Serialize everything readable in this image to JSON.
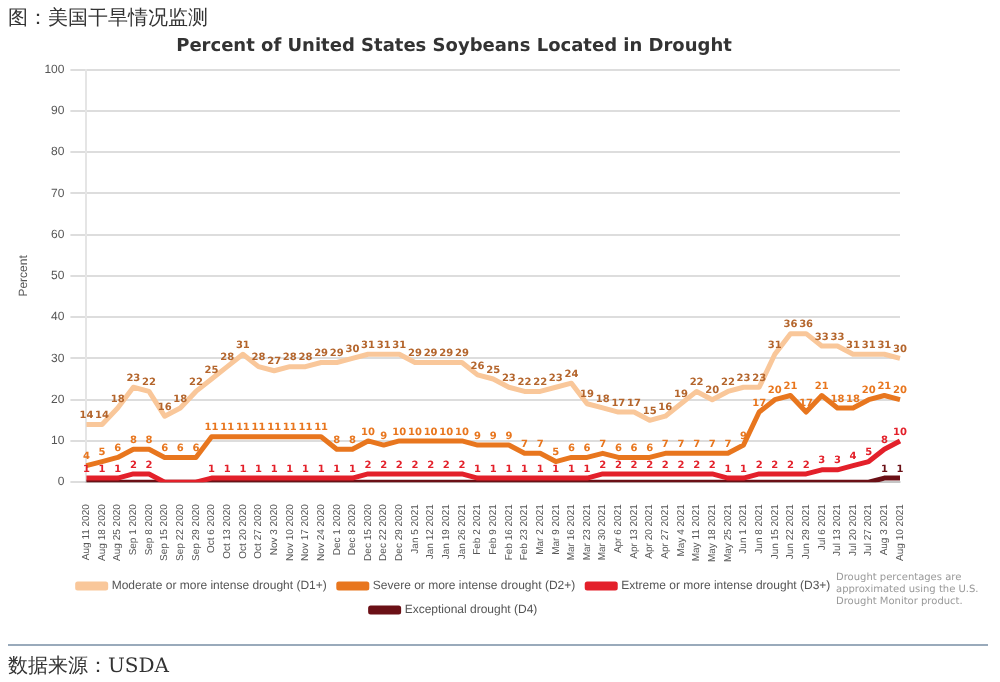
{
  "chart_data": {
    "type": "line",
    "subtitle": "图：美国干旱情况监测",
    "title": "Percent of United States Soybeans Located in Drought",
    "ylabel": "Percent",
    "categories": [
      "Aug 11 2020",
      "Aug 18 2020",
      "Aug 25 2020",
      "Sep 1 2020",
      "Sep 8 2020",
      "Sep 15 2020",
      "Sep 22 2020",
      "Sep 29 2020",
      "Oct 6 2020",
      "Oct 13 2020",
      "Oct 20 2020",
      "Oct 27 2020",
      "Nov 3 2020",
      "Nov 10 2020",
      "Nov 17 2020",
      "Nov 24 2020",
      "Dec 1 2020",
      "Dec 8 2020",
      "Dec 15 2020",
      "Dec 22 2020",
      "Dec 29 2020",
      "Jan 5 2021",
      "Jan 12 2021",
      "Jan 19 2021",
      "Jan 26 2021",
      "Feb 2 2021",
      "Feb 9 2021",
      "Feb 16 2021",
      "Feb 23 2021",
      "Mar 2 2021",
      "Mar 9 2021",
      "Mar 16 2021",
      "Mar 23 2021",
      "Mar 30 2021",
      "Apr 6 2021",
      "Apr 13 2021",
      "Apr 20 2021",
      "Apr 27 2021",
      "May 4 2021",
      "May 11 2021",
      "May 18 2021",
      "May 25 2021",
      "Jun 1 2021",
      "Jun 8 2021",
      "Jun 15 2021",
      "Jun 22 2021",
      "Jun 29 2021",
      "Jul 6 2021",
      "Jul 13 2021",
      "Jul 20 2021",
      "Jul 27 2021",
      "Aug 3 2021",
      "Aug 10 2021"
    ],
    "series": [
      {
        "name": "Moderate or more intense drought (D1+)",
        "color": "#f9c79a",
        "values": [
          14,
          14,
          18,
          23,
          22,
          16,
          18,
          22,
          25,
          28,
          31,
          28,
          27,
          28,
          28,
          29,
          29,
          30,
          31,
          31,
          31,
          29,
          29,
          29,
          29,
          26,
          25,
          23,
          22,
          22,
          23,
          24,
          19,
          18,
          17,
          17,
          15,
          16,
          19,
          22,
          20,
          22,
          23,
          23,
          31,
          36,
          36,
          33,
          33,
          31,
          31,
          31,
          30
        ],
        "value_labels": [
          "14",
          "14",
          "18",
          "23",
          "22",
          "16",
          "18",
          "22",
          "25",
          "28",
          "31",
          "28",
          "27",
          "28",
          "28",
          "29",
          "29",
          "30",
          "31",
          "31",
          "31",
          "29",
          "29",
          "29",
          "29",
          "26",
          "25",
          "23",
          "22",
          "22",
          "23",
          "24",
          "19",
          "18",
          "17",
          "17",
          "15",
          "16",
          "19",
          "22",
          "20",
          "22",
          "23",
          "23",
          "31",
          "36",
          "36",
          "33",
          "33",
          "31",
          "31",
          "31",
          "30"
        ]
      },
      {
        "name": "Severe or more intense drought (D2+)",
        "color": "#e8761e",
        "values": [
          4,
          5,
          6,
          8,
          8,
          6,
          6,
          6,
          11,
          11,
          11,
          11,
          11,
          11,
          11,
          11,
          8,
          8,
          10,
          9,
          10,
          10,
          10,
          10,
          10,
          9,
          9,
          9,
          7,
          7,
          5,
          6,
          6,
          7,
          6,
          6,
          6,
          7,
          7,
          7,
          7,
          7,
          9,
          17,
          20,
          21,
          17,
          21,
          18,
          18,
          20,
          21,
          20
        ],
        "value_labels": [
          "4",
          "5",
          "6",
          "8",
          "8",
          "6",
          "6",
          "6",
          "11",
          "11",
          "11",
          "11",
          "11",
          "11",
          "11",
          "11",
          "8",
          "8",
          "10",
          "9",
          "10",
          "10",
          "10",
          "10",
          "10",
          "9",
          "9",
          "9",
          "7",
          "7",
          "5",
          "6",
          "6",
          "7",
          "6",
          "6",
          "6",
          "7",
          "7",
          "7",
          "7",
          "7",
          "9",
          "17",
          "20",
          "21",
          "17",
          "21",
          "18",
          "18",
          "20",
          "21",
          "20"
        ]
      },
      {
        "name": "Extreme or more intense drought (D3+)",
        "color": "#e3202a",
        "values": [
          1,
          1,
          1,
          2,
          2,
          0,
          0,
          0,
          1,
          1,
          1,
          1,
          1,
          1,
          1,
          1,
          1,
          1,
          2,
          2,
          2,
          2,
          2,
          2,
          2,
          1,
          1,
          1,
          1,
          1,
          1,
          1,
          1,
          2,
          2,
          2,
          2,
          2,
          2,
          2,
          2,
          1,
          1,
          2,
          2,
          2,
          2,
          3,
          3,
          4,
          5,
          8,
          10
        ],
        "value_labels": [
          "1",
          "1",
          "1",
          "2",
          "2",
          null,
          null,
          null,
          "1",
          "1",
          "1",
          "1",
          "1",
          "1",
          "1",
          "1",
          "1",
          "1",
          "2",
          "2",
          "2",
          "2",
          "2",
          "2",
          "2",
          "1",
          "1",
          "1",
          "1",
          "1",
          "1",
          "1",
          "1",
          "2",
          "2",
          "2",
          "2",
          "2",
          "2",
          "2",
          "2",
          "1",
          "1",
          "2",
          "2",
          "2",
          "2",
          "3",
          "3",
          "4",
          "5",
          "8",
          "10"
        ]
      },
      {
        "name": "Exceptional drought (D4)",
        "color": "#6b1016",
        "values": [
          0,
          0,
          0,
          0,
          0,
          0,
          0,
          0,
          0,
          0,
          0,
          0,
          0,
          0,
          0,
          0,
          0,
          0,
          0,
          0,
          0,
          0,
          0,
          0,
          0,
          0,
          0,
          0,
          0,
          0,
          0,
          0,
          0,
          0,
          0,
          0,
          0,
          0,
          0,
          0,
          0,
          0,
          0,
          0,
          0,
          0,
          0,
          0,
          0,
          0,
          0,
          1,
          1
        ],
        "value_labels": [
          null,
          null,
          null,
          null,
          null,
          null,
          null,
          null,
          null,
          null,
          null,
          null,
          null,
          null,
          null,
          null,
          null,
          null,
          null,
          null,
          null,
          null,
          null,
          null,
          null,
          null,
          null,
          null,
          null,
          null,
          null,
          null,
          null,
          null,
          null,
          null,
          null,
          null,
          null,
          null,
          null,
          null,
          null,
          null,
          null,
          null,
          null,
          null,
          null,
          null,
          null,
          "1",
          "1"
        ]
      }
    ],
    "ylim": [
      0,
      100
    ],
    "yticks": [
      0,
      10,
      20,
      30,
      40,
      50,
      60,
      70,
      80,
      90,
      100
    ],
    "grid": "y",
    "legend": "bottom",
    "marker": "none",
    "annotations": [
      "Drought percentages are approximated using the U.S. Drought Monitor product.",
      "数据来源：USDA"
    ]
  }
}
